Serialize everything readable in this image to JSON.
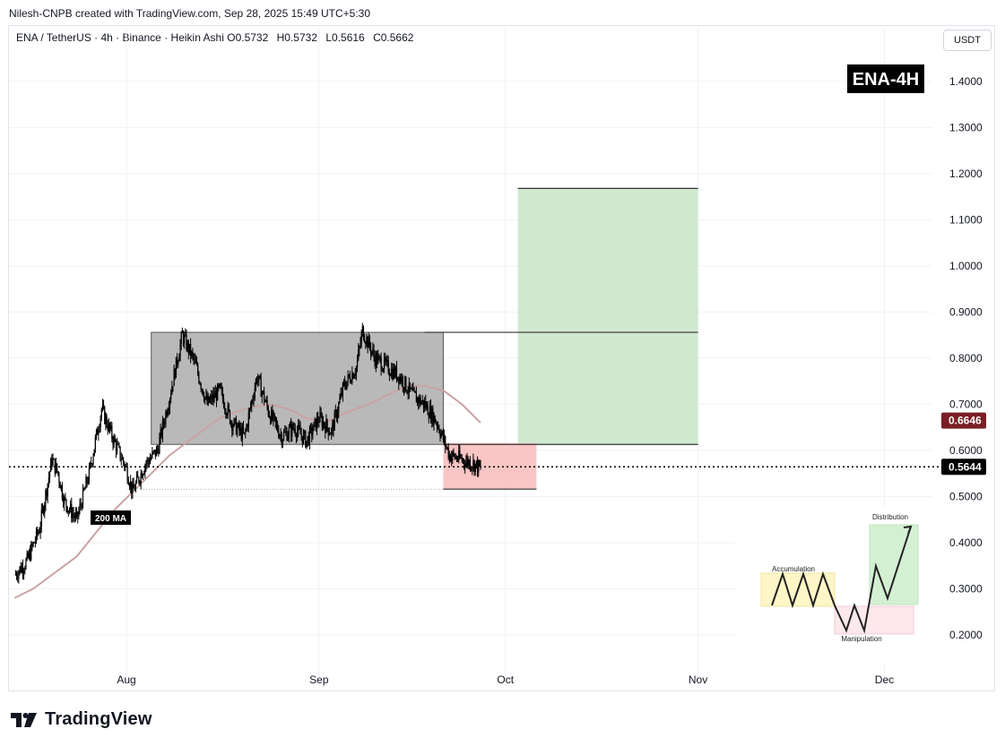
{
  "header": {
    "credit": "Nilesh-CNPB created with TradingView.com, Sep 28, 2025 15:49 UTC+5:30"
  },
  "symbol_bar": {
    "symbol": "ENA / TetherUS · 4h · Binance · Heikin Ashi",
    "ohlc": [
      {
        "label": "O",
        "value": "0.5732"
      },
      {
        "label": "H",
        "value": "0.5732"
      },
      {
        "label": "L",
        "value": "0.5616"
      },
      {
        "label": "C",
        "value": "0.5662"
      }
    ]
  },
  "currency_button": "USDT",
  "footer": {
    "brand": "TradingView"
  },
  "chart_data": {
    "type": "candlestick",
    "title": "ENA-4H",
    "x_ticks": [
      "Aug",
      "Sep",
      "Oct",
      "Nov",
      "Dec"
    ],
    "y_ticks": [
      "0.2000",
      "0.3000",
      "0.4000",
      "0.5000",
      "0.6000",
      "0.7000",
      "0.8000",
      "0.9000",
      "1.0000",
      "1.1000",
      "1.2000",
      "1.3000",
      "1.4000"
    ],
    "ylim": [
      0.13,
      1.46
    ],
    "last_price": {
      "value": 0.5644,
      "label": "0.5644",
      "color": "#000000"
    },
    "ma200": {
      "name": "200 MA",
      "current": {
        "value": 0.6646,
        "label": "0.6646",
        "color": "#7a1f24"
      },
      "color": "#c9a3a3",
      "points": [
        [
          "Jul 14",
          0.28
        ],
        [
          "Jul 17",
          0.3
        ],
        [
          "Jul 20",
          0.33
        ],
        [
          "Jul 24",
          0.37
        ],
        [
          "Jul 27",
          0.42
        ],
        [
          "Jul 30",
          0.47
        ],
        [
          "Aug 2",
          0.51
        ],
        [
          "Aug 5",
          0.55
        ],
        [
          "Aug 8",
          0.59
        ],
        [
          "Aug 12",
          0.63
        ],
        [
          "Aug 16",
          0.67
        ],
        [
          "Aug 20",
          0.69
        ],
        [
          "Aug 24",
          0.7
        ],
        [
          "Aug 27",
          0.69
        ],
        [
          "Aug 30",
          0.67
        ],
        [
          "Sep 2",
          0.66
        ],
        [
          "Sep 5",
          0.68
        ],
        [
          "Sep 9",
          0.7
        ],
        [
          "Sep 12",
          0.72
        ],
        [
          "Sep 15",
          0.74
        ],
        [
          "Sep 18",
          0.74
        ],
        [
          "Sep 21",
          0.73
        ],
        [
          "Sep 24",
          0.7
        ],
        [
          "Sep 27",
          0.66
        ]
      ]
    },
    "price_path": [
      [
        "Jul 14",
        0.33
      ],
      [
        "Jul 16",
        0.36
      ],
      [
        "Jul 18",
        0.43
      ],
      [
        "Jul 20",
        0.58
      ],
      [
        "Jul 21",
        0.55
      ],
      [
        "Jul 22",
        0.49
      ],
      [
        "Jul 24",
        0.45
      ],
      [
        "Jul 26",
        0.55
      ],
      [
        "Jul 28",
        0.69
      ],
      [
        "Jul 30",
        0.62
      ],
      [
        "Aug 1",
        0.56
      ],
      [
        "Aug 2",
        0.51
      ],
      [
        "Aug 4",
        0.57
      ],
      [
        "Aug 6",
        0.6
      ],
      [
        "Aug 8",
        0.72
      ],
      [
        "Aug 10",
        0.85
      ],
      [
        "Aug 12",
        0.79
      ],
      [
        "Aug 14",
        0.7
      ],
      [
        "Aug 16",
        0.73
      ],
      [
        "Aug 18",
        0.66
      ],
      [
        "Aug 20",
        0.63
      ],
      [
        "Aug 22",
        0.76
      ],
      [
        "Aug 24",
        0.68
      ],
      [
        "Aug 26",
        0.63
      ],
      [
        "Aug 28",
        0.65
      ],
      [
        "Aug 30",
        0.62
      ],
      [
        "Sep 1",
        0.67
      ],
      [
        "Sep 3",
        0.64
      ],
      [
        "Sep 5",
        0.74
      ],
      [
        "Sep 7",
        0.78
      ],
      [
        "Sep 8",
        0.86
      ],
      [
        "Sep 10",
        0.8
      ],
      [
        "Sep 12",
        0.78
      ],
      [
        "Sep 14",
        0.76
      ],
      [
        "Sep 16",
        0.72
      ],
      [
        "Sep 18",
        0.7
      ],
      [
        "Sep 20",
        0.66
      ],
      [
        "Sep 22",
        0.59
      ],
      [
        "Sep 24",
        0.58
      ],
      [
        "Sep 26",
        0.57
      ],
      [
        "Sep 27",
        0.56
      ]
    ],
    "range_box": {
      "x_from": "Aug 5",
      "x_to": "Sep 21",
      "y_low": 0.613,
      "y_high": 0.856,
      "color": "#9e9e9e"
    },
    "target_box": {
      "x_from": "Oct 3",
      "x_to": "Nov 1",
      "y_low": 0.613,
      "y_high": 1.168,
      "color": "#c8e6c9"
    },
    "manipulation_box": {
      "x_from": "Sep 21",
      "x_to": "Oct 6",
      "y_low": 0.516,
      "y_high": 0.616,
      "color": "#f8bbbb"
    },
    "levels": [
      {
        "y": 0.856,
        "x_from": "Sep 18",
        "x_to": "Nov 1"
      },
      {
        "y": 0.613,
        "x_from": "Sep 21",
        "x_to": "Nov 1"
      },
      {
        "y": 0.516,
        "x_from": "Aug 2",
        "x_to": "Oct 6"
      }
    ],
    "annotation": "200 MA",
    "inset": {
      "labels": [
        "Accumulation",
        "Manipulation",
        "Distribution"
      ]
    }
  }
}
